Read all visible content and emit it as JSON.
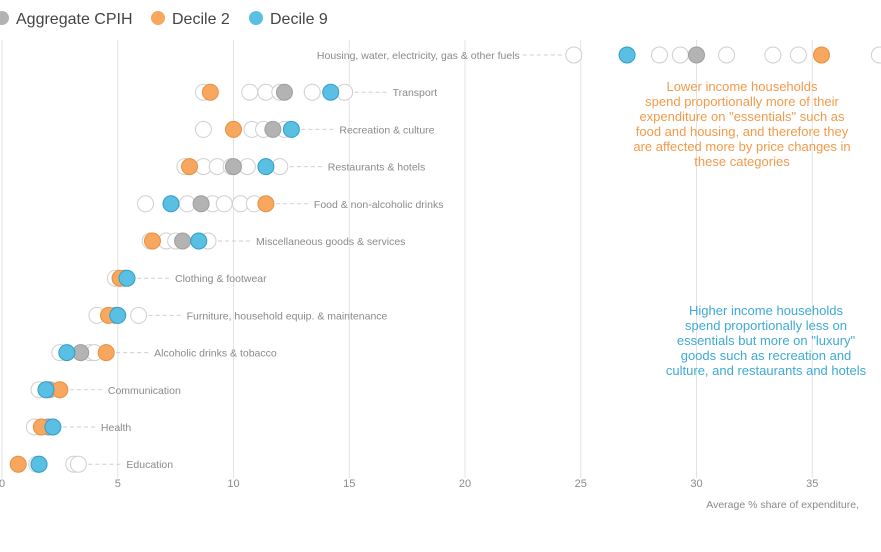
{
  "chart_data": {
    "type": "scatter",
    "title": "",
    "xlabel": "Average % share of expenditure,",
    "ylabel": "",
    "xlim": [
      0,
      38
    ],
    "x_ticks": [
      0,
      5,
      10,
      15,
      20,
      25,
      30,
      35
    ],
    "legend": [
      {
        "name": "Aggregate CPIH",
        "color": "#b3b3b3"
      },
      {
        "name": "Decile 2",
        "color": "#f7a75e"
      },
      {
        "name": "Decile 9",
        "color": "#59bfe3"
      }
    ],
    "categories": [
      "Housing, water, electricity, gas & other fuels",
      "Transport",
      "Recreation & culture",
      "Restaurants & hotels",
      "Food & non-alcoholic drinks",
      "Miscellaneous goods & services",
      "Clothing & footwear",
      "Furniture, household equip. & maintenance",
      "Alcoholic drinks & tobacco",
      "Communication",
      "Health",
      "Education"
    ],
    "series": [
      {
        "name": "Aggregate CPIH",
        "values": [
          30.0,
          12.2,
          11.7,
          10.0,
          8.6,
          7.8,
          5.3,
          4.9,
          3.4,
          2.0,
          2.0,
          1.6
        ]
      },
      {
        "name": "Decile 2",
        "values": [
          35.4,
          9.0,
          10.0,
          8.1,
          11.4,
          6.5,
          5.1,
          4.6,
          4.5,
          2.5,
          1.7,
          0.7
        ]
      },
      {
        "name": "Decile 9",
        "values": [
          27.0,
          14.2,
          12.5,
          11.4,
          7.3,
          8.5,
          5.4,
          5.0,
          2.8,
          1.9,
          2.2,
          1.6
        ]
      }
    ],
    "other_deciles": [
      [
        24.7,
        28.4,
        29.3,
        31.3,
        33.3,
        34.4,
        37.9
      ],
      [
        8.7,
        10.7,
        11.4,
        12.0,
        13.4,
        14.8
      ],
      [
        8.7,
        10.8,
        11.3,
        12.2
      ],
      [
        7.9,
        8.7,
        9.3,
        9.9,
        10.6,
        12.0
      ],
      [
        6.2,
        8.0,
        9.1,
        9.6,
        10.3,
        10.9
      ],
      [
        6.4,
        7.1,
        7.5,
        8.9
      ],
      [
        4.9
      ],
      [
        4.1,
        5.9
      ],
      [
        2.5,
        3.8,
        4.0
      ],
      [
        1.6,
        2.1
      ],
      [
        1.4,
        2.0
      ],
      [
        1.5,
        3.1,
        3.3
      ]
    ],
    "annotations": [
      {
        "color": "#f39a4a",
        "lines": [
          "Lower income households",
          "spend proportionally more of their",
          "expenditure on \"essentials\" such as",
          "food and housing, and therefore they",
          "are affected more by price changes in",
          "these categories"
        ]
      },
      {
        "color": "#3fa9d6",
        "lines": [
          "Higher income households",
          "spend proportionally less on",
          "essentials but more on \"luxury\"",
          "goods such as recreation and",
          "culture, and restaurants and hotels"
        ]
      }
    ]
  }
}
